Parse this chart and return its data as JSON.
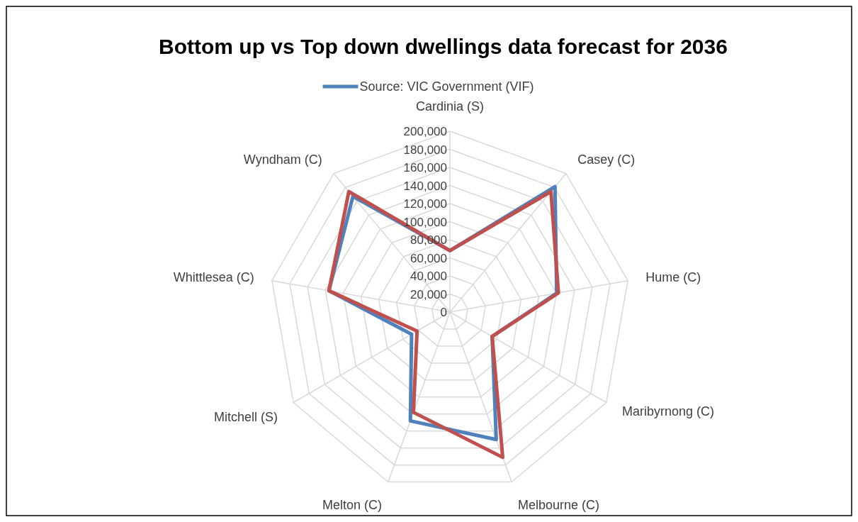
{
  "chart_data": {
    "type": "radar",
    "title": "Bottom up vs Top down dwellings data forecast for 2036",
    "categories": [
      "Cardinia (S)",
      "Casey (C)",
      "Hume (C)",
      "Maribyrnong (C)",
      "Melbourne (C)",
      "Melton (C)",
      "Mitchell (S)",
      "Whittlesea (C)",
      "Wyndham (C)"
    ],
    "series": [
      {
        "name": "Source: VIC Government (VIF)",
        "color": "#4f81bd",
        "values": [
          68000,
          181000,
          120000,
          54000,
          150000,
          128000,
          49000,
          136000,
          167000
        ]
      },
      {
        "color": "#c0504d",
        "values": [
          68000,
          174000,
          122000,
          54000,
          171000,
          118000,
          42000,
          136000,
          174000
        ]
      }
    ],
    "ylim": [
      0,
      200000
    ],
    "yticks": [
      {
        "value": 0,
        "label": "0"
      },
      {
        "value": 20000,
        "label": "20,000"
      },
      {
        "value": 40000,
        "label": "40,000"
      },
      {
        "value": 60000,
        "label": "60,000"
      },
      {
        "value": 80000,
        "label": "80,000"
      },
      {
        "value": 100000,
        "label": "100,000"
      },
      {
        "value": 120000,
        "label": "120,000"
      },
      {
        "value": 140000,
        "label": "140,000"
      },
      {
        "value": 160000,
        "label": "160,000"
      },
      {
        "value": 180000,
        "label": "180,000"
      },
      {
        "value": 200000,
        "label": "200,000"
      }
    ],
    "grid": true,
    "legend": "top"
  }
}
